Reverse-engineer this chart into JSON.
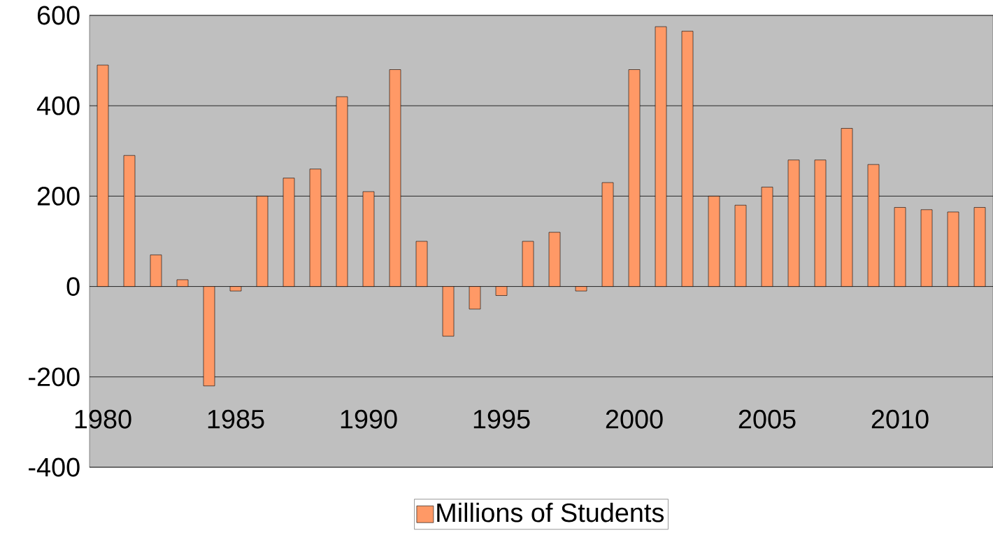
{
  "chart_data": {
    "type": "bar",
    "categories": [
      "1980",
      null,
      null,
      null,
      null,
      "1985",
      null,
      null,
      null,
      null,
      "1990",
      null,
      null,
      null,
      null,
      "1995",
      null,
      null,
      null,
      null,
      "2000",
      null,
      null,
      null,
      null,
      "2005",
      null,
      null,
      null,
      null,
      "2010",
      null,
      null,
      null
    ],
    "series": [
      {
        "name": "Millions of Students",
        "color": "#ff9966",
        "values": [
          490,
          290,
          70,
          15,
          -220,
          -10,
          200,
          240,
          260,
          420,
          210,
          480,
          100,
          -110,
          -50,
          -20,
          100,
          120,
          -10,
          230,
          480,
          575,
          565,
          200,
          180,
          220,
          280,
          280,
          350,
          270,
          175,
          170,
          165,
          175
        ]
      }
    ],
    "ylim": [
      -400,
      600
    ],
    "yticks": [
      -400,
      -200,
      0,
      200,
      400,
      600
    ],
    "grid": "y",
    "legend": "bottom"
  }
}
